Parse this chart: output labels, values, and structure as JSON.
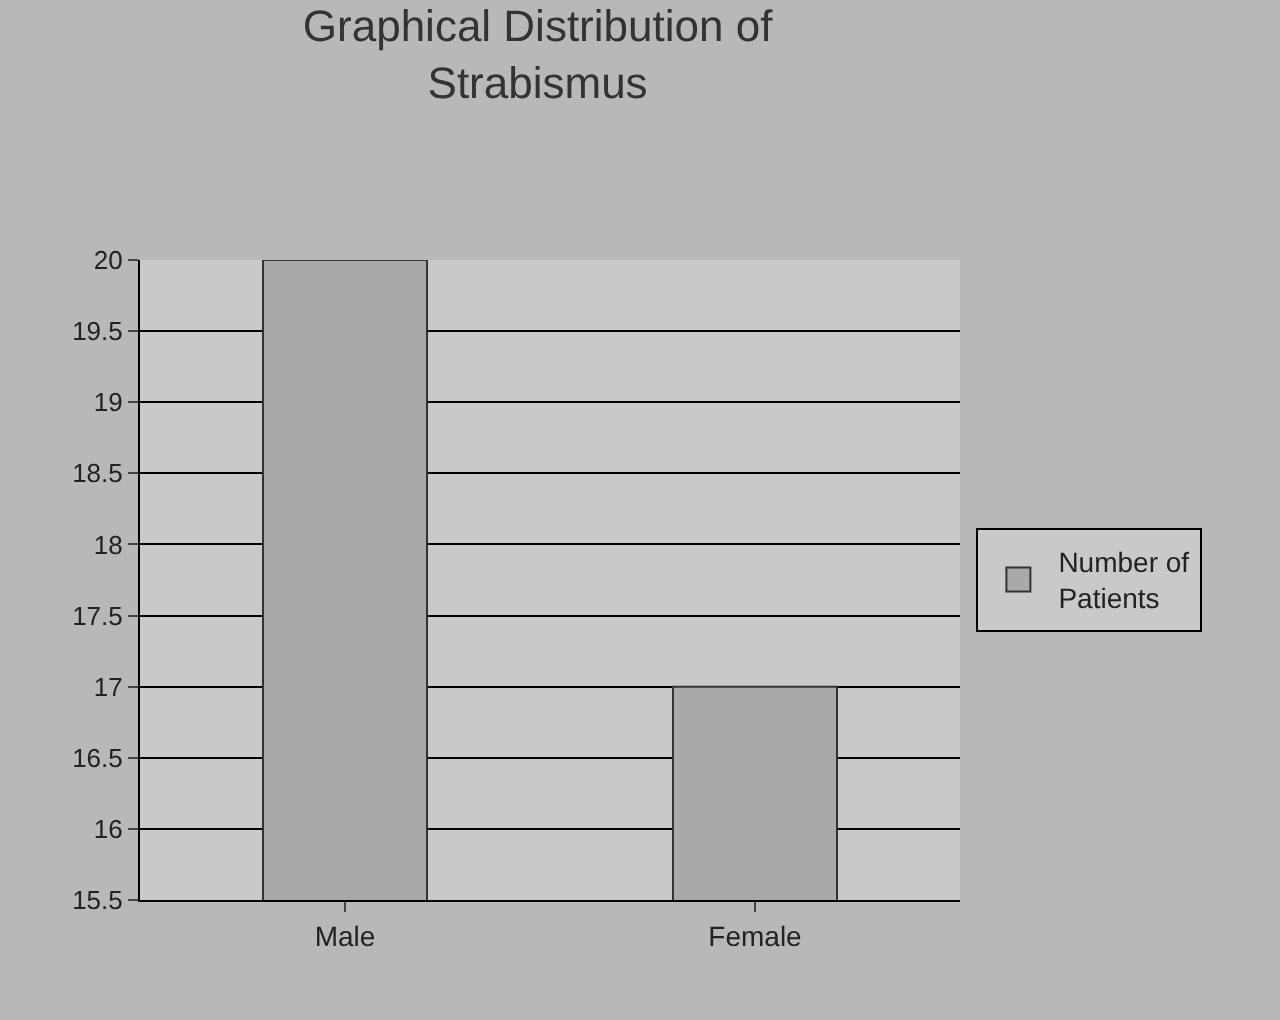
{
  "chart_data": {
    "type": "bar",
    "title": "Graphical Distribution of Strabismus",
    "categories": [
      "Male",
      "Female"
    ],
    "series": [
      {
        "name": "Number of Patients",
        "color": "#a9a9a9",
        "values": [
          20,
          17
        ]
      }
    ],
    "ylim": [
      15.5,
      20
    ],
    "yticks": [
      15.5,
      16,
      16.5,
      17,
      17.5,
      18,
      18.5,
      19,
      19.5,
      20
    ],
    "grid": "y",
    "legend": "right"
  }
}
